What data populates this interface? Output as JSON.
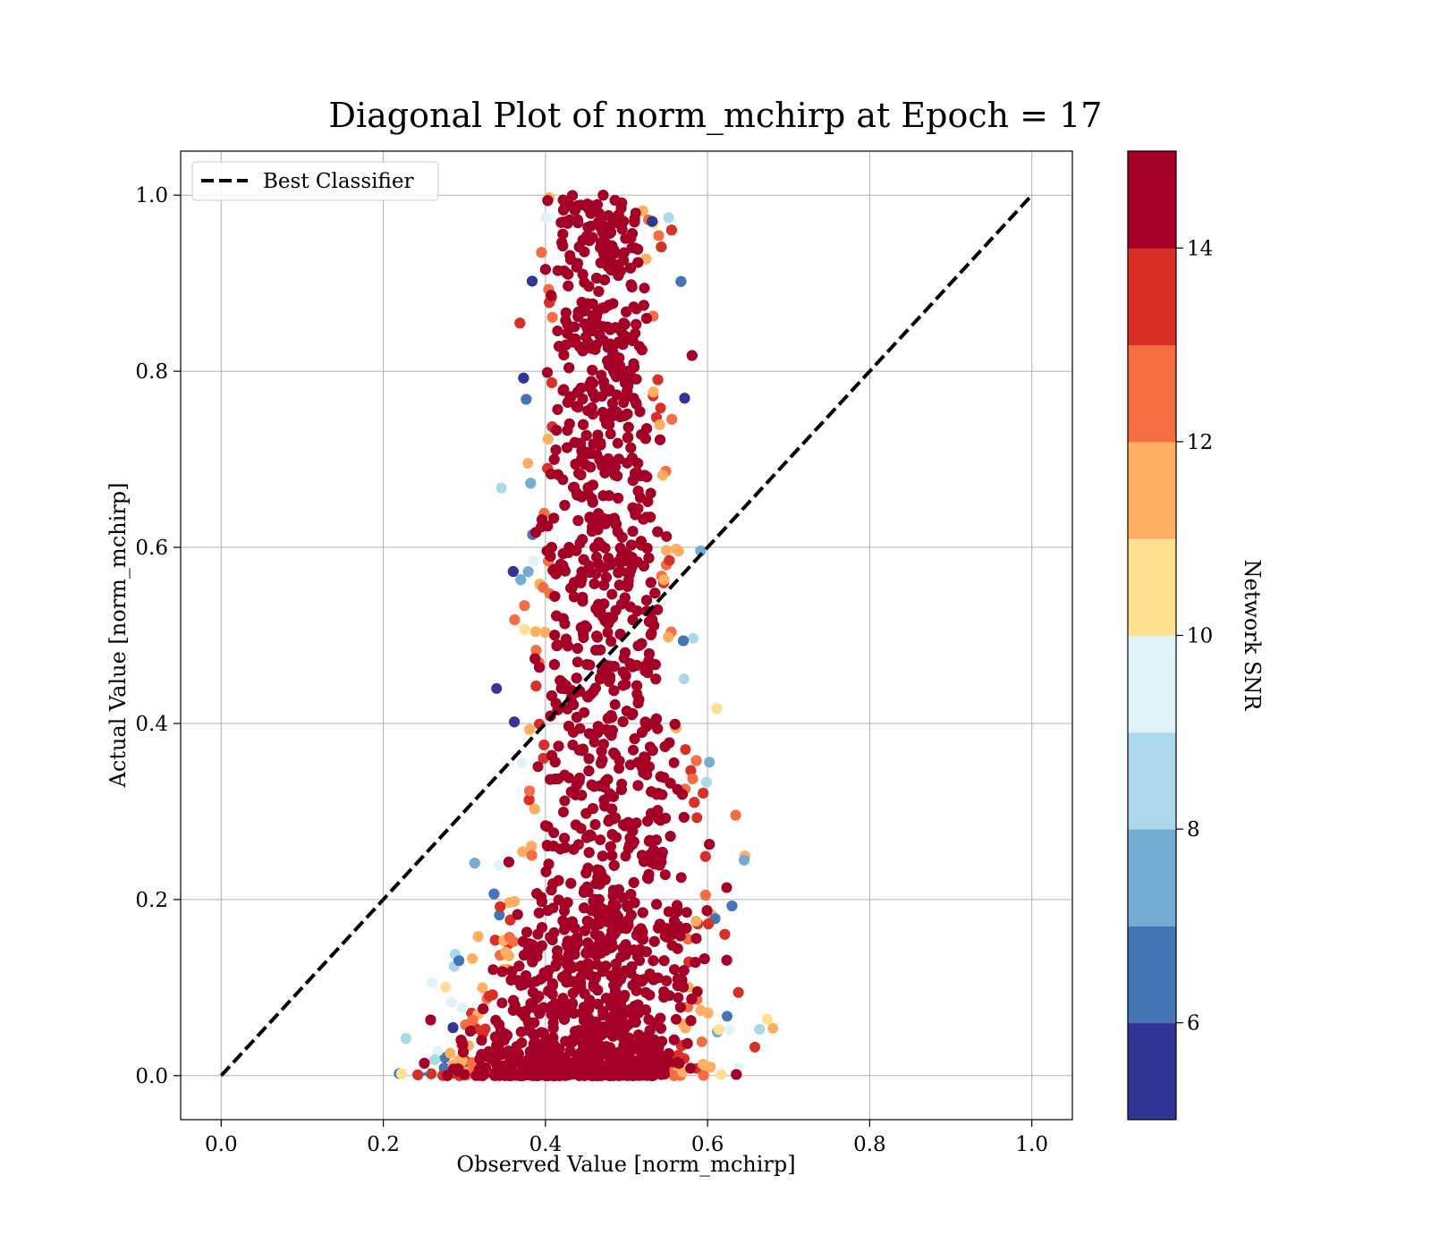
{
  "chart_data": {
    "type": "scatter",
    "title": "Diagonal Plot of norm_mchirp at Epoch = 17",
    "xlabel": "Observed Value [norm_mchirp]",
    "ylabel": "Actual Value [norm_mchirp]",
    "xlim": [
      -0.05,
      1.05
    ],
    "ylim": [
      -0.05,
      1.05
    ],
    "xticks": [
      "0.0",
      "0.2",
      "0.4",
      "0.6",
      "0.8",
      "1.0"
    ],
    "yticks": [
      "0.0",
      "0.2",
      "0.4",
      "0.6",
      "0.8",
      "1.0"
    ],
    "grid": true,
    "legend": {
      "placement": "top-left",
      "entries": [
        "Best Classifier"
      ]
    },
    "reference_line": {
      "name": "Best Classifier",
      "style": "dashed",
      "color": "#000000",
      "x": [
        0,
        1
      ],
      "y": [
        0,
        1
      ]
    },
    "colorbar": {
      "label": "Network SNR",
      "range": [
        5,
        15
      ],
      "ticks": [
        "6",
        "8",
        "10",
        "12",
        "14"
      ],
      "colors": [
        "#313695",
        "#4575b4",
        "#74add1",
        "#abd9e9",
        "#e0f3f8",
        "#fee090",
        "#fdae61",
        "#f46d43",
        "#d73027",
        "#a50026"
      ]
    },
    "series": [
      {
        "name": "",
        "description_points": "dense cloud of points; observed spans about 0.27-0.67, concentrated around 0.40-0.57 for all actual values 0.0-1.0; most points have SNR above 14",
        "core_envelope": [
          {
            "y": 0.0,
            "xmin": 0.28,
            "xmax": 0.58
          },
          {
            "y": 0.1,
            "xmin": 0.32,
            "xmax": 0.6
          },
          {
            "y": 0.2,
            "xmin": 0.36,
            "xmax": 0.6
          },
          {
            "y": 0.3,
            "xmin": 0.38,
            "xmax": 0.6
          },
          {
            "y": 0.4,
            "xmin": 0.39,
            "xmax": 0.57
          },
          {
            "y": 0.5,
            "xmin": 0.39,
            "xmax": 0.56
          },
          {
            "y": 0.6,
            "xmin": 0.39,
            "xmax": 0.55
          },
          {
            "y": 0.7,
            "xmin": 0.39,
            "xmax": 0.55
          },
          {
            "y": 0.8,
            "xmin": 0.4,
            "xmax": 0.54
          },
          {
            "y": 0.9,
            "xmin": 0.4,
            "xmax": 0.54
          },
          {
            "y": 1.0,
            "xmin": 0.41,
            "xmax": 0.52
          }
        ]
      }
    ]
  }
}
